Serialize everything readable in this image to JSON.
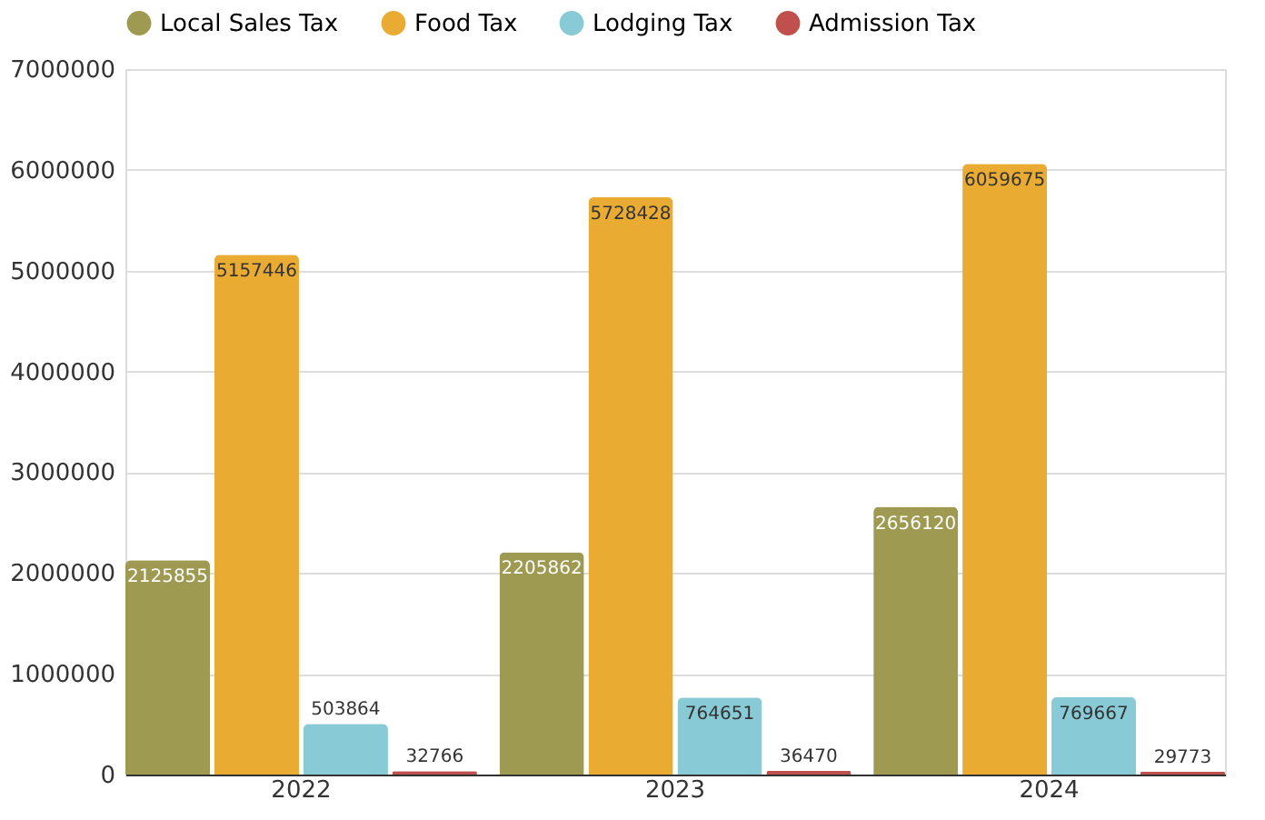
{
  "chart_data": {
    "type": "bar",
    "categories": [
      "2022",
      "2023",
      "2024"
    ],
    "series": [
      {
        "name": "Local Sales Tax",
        "color": "#9e9a52",
        "values": [
          2125855,
          2205862,
          2656120
        ]
      },
      {
        "name": "Food Tax",
        "color": "#eaab33",
        "values": [
          5157446,
          5728428,
          6059675
        ]
      },
      {
        "name": "Lodging Tax",
        "color": "#88cad5",
        "values": [
          503864,
          764651,
          769667
        ]
      },
      {
        "name": "Admission Tax",
        "color": "#c0504d",
        "values": [
          32766,
          36470,
          29773
        ]
      }
    ],
    "ylim": [
      0,
      7000000
    ],
    "yticks": [
      0,
      1000000,
      2000000,
      3000000,
      4000000,
      5000000,
      6000000,
      7000000
    ],
    "grid": "y",
    "legend": "top",
    "data_labels": true
  }
}
